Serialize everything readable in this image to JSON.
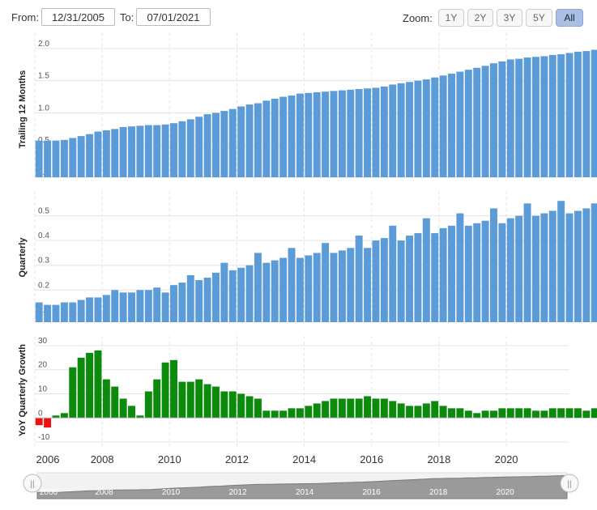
{
  "toolbar": {
    "from_label": "From:",
    "from_value": "12/31/2005",
    "to_label": "To:",
    "to_value": "07/01/2021",
    "zoom_label": "Zoom:",
    "zoom_buttons": [
      "1Y",
      "2Y",
      "3Y",
      "5Y",
      "All"
    ],
    "zoom_active": "All"
  },
  "colors": {
    "bar_blue": "#5b9bd8",
    "growth_positive": "#0b8a0b",
    "growth_negative": "#ee1111",
    "grid": "#e4e4e4",
    "navigator_fill": "#9a9a9a"
  },
  "chart_data": [
    {
      "type": "bar",
      "ylabel": "Trailing 12 Months",
      "ylim": [
        0,
        2.25
      ],
      "yticks": [
        "0.0",
        "0.5",
        "1.0",
        "1.5",
        "2.0"
      ],
      "x_start": 2006.0,
      "x_step": 0.25,
      "values": [
        0.57,
        0.57,
        0.57,
        0.58,
        0.61,
        0.64,
        0.67,
        0.71,
        0.73,
        0.75,
        0.78,
        0.79,
        0.8,
        0.81,
        0.81,
        0.82,
        0.84,
        0.87,
        0.9,
        0.94,
        0.98,
        1.0,
        1.03,
        1.06,
        1.1,
        1.13,
        1.15,
        1.19,
        1.22,
        1.25,
        1.27,
        1.3,
        1.31,
        1.32,
        1.33,
        1.34,
        1.35,
        1.36,
        1.37,
        1.38,
        1.39,
        1.41,
        1.44,
        1.46,
        1.48,
        1.5,
        1.52,
        1.55,
        1.58,
        1.61,
        1.64,
        1.67,
        1.7,
        1.73,
        1.77,
        1.8,
        1.83,
        1.84,
        1.86,
        1.87,
        1.88,
        1.9,
        1.91,
        1.93,
        1.95,
        1.96,
        1.98,
        1.99,
        2.0,
        2.02,
        2.03,
        2.05,
        2.06,
        2.08,
        2.1,
        2.11
      ]
    },
    {
      "type": "bar",
      "ylabel": "Quarterly",
      "ylim": [
        0.07,
        0.6
      ],
      "yticks": [
        "0.1",
        "0.2",
        "0.3",
        "0.4",
        "0.5"
      ],
      "x_start": 2006.0,
      "x_step": 0.25,
      "values": [
        0.15,
        0.14,
        0.14,
        0.15,
        0.15,
        0.16,
        0.17,
        0.17,
        0.18,
        0.2,
        0.19,
        0.19,
        0.2,
        0.2,
        0.21,
        0.19,
        0.22,
        0.23,
        0.26,
        0.24,
        0.25,
        0.27,
        0.31,
        0.28,
        0.29,
        0.3,
        0.35,
        0.31,
        0.32,
        0.33,
        0.37,
        0.33,
        0.34,
        0.35,
        0.39,
        0.35,
        0.36,
        0.37,
        0.42,
        0.37,
        0.4,
        0.41,
        0.46,
        0.4,
        0.42,
        0.43,
        0.49,
        0.43,
        0.45,
        0.46,
        0.51,
        0.46,
        0.47,
        0.48,
        0.53,
        0.47,
        0.49,
        0.5,
        0.55,
        0.5,
        0.51,
        0.52,
        0.56,
        0.51,
        0.52,
        0.53,
        0.55,
        0.51,
        0.53,
        0.54,
        0.56,
        0.52,
        0.53,
        0.55,
        0.57,
        0.53
      ]
    },
    {
      "type": "bar",
      "ylabel": "YoY Quarterly Growth",
      "ylim": [
        -12,
        34
      ],
      "yticks": [
        "-10",
        "0",
        "10",
        "20",
        "30"
      ],
      "x_start": 2006.0,
      "x_step": 0.25,
      "values": [
        -3,
        -4,
        1,
        2,
        21,
        25,
        27,
        28,
        16,
        13,
        8,
        5,
        1,
        11,
        16,
        23,
        24,
        15,
        15,
        16,
        14,
        13,
        11,
        11,
        10,
        9,
        8,
        3,
        3,
        3,
        4,
        4,
        5,
        6,
        7,
        8,
        8,
        8,
        8,
        9,
        8,
        8,
        7,
        6,
        5,
        5,
        6,
        7,
        5,
        4,
        4,
        3,
        2,
        3,
        3,
        4,
        4,
        4,
        4,
        3,
        3,
        4,
        4,
        4,
        4,
        3,
        4,
        4,
        4,
        4,
        4,
        4,
        4,
        5,
        4,
        4
      ]
    }
  ],
  "x_axis": {
    "tick_labels": [
      "2006",
      "2008",
      "2010",
      "2012",
      "2014",
      "2016",
      "2018",
      "2020"
    ]
  },
  "navigator": {
    "handle_glyph": "||"
  }
}
